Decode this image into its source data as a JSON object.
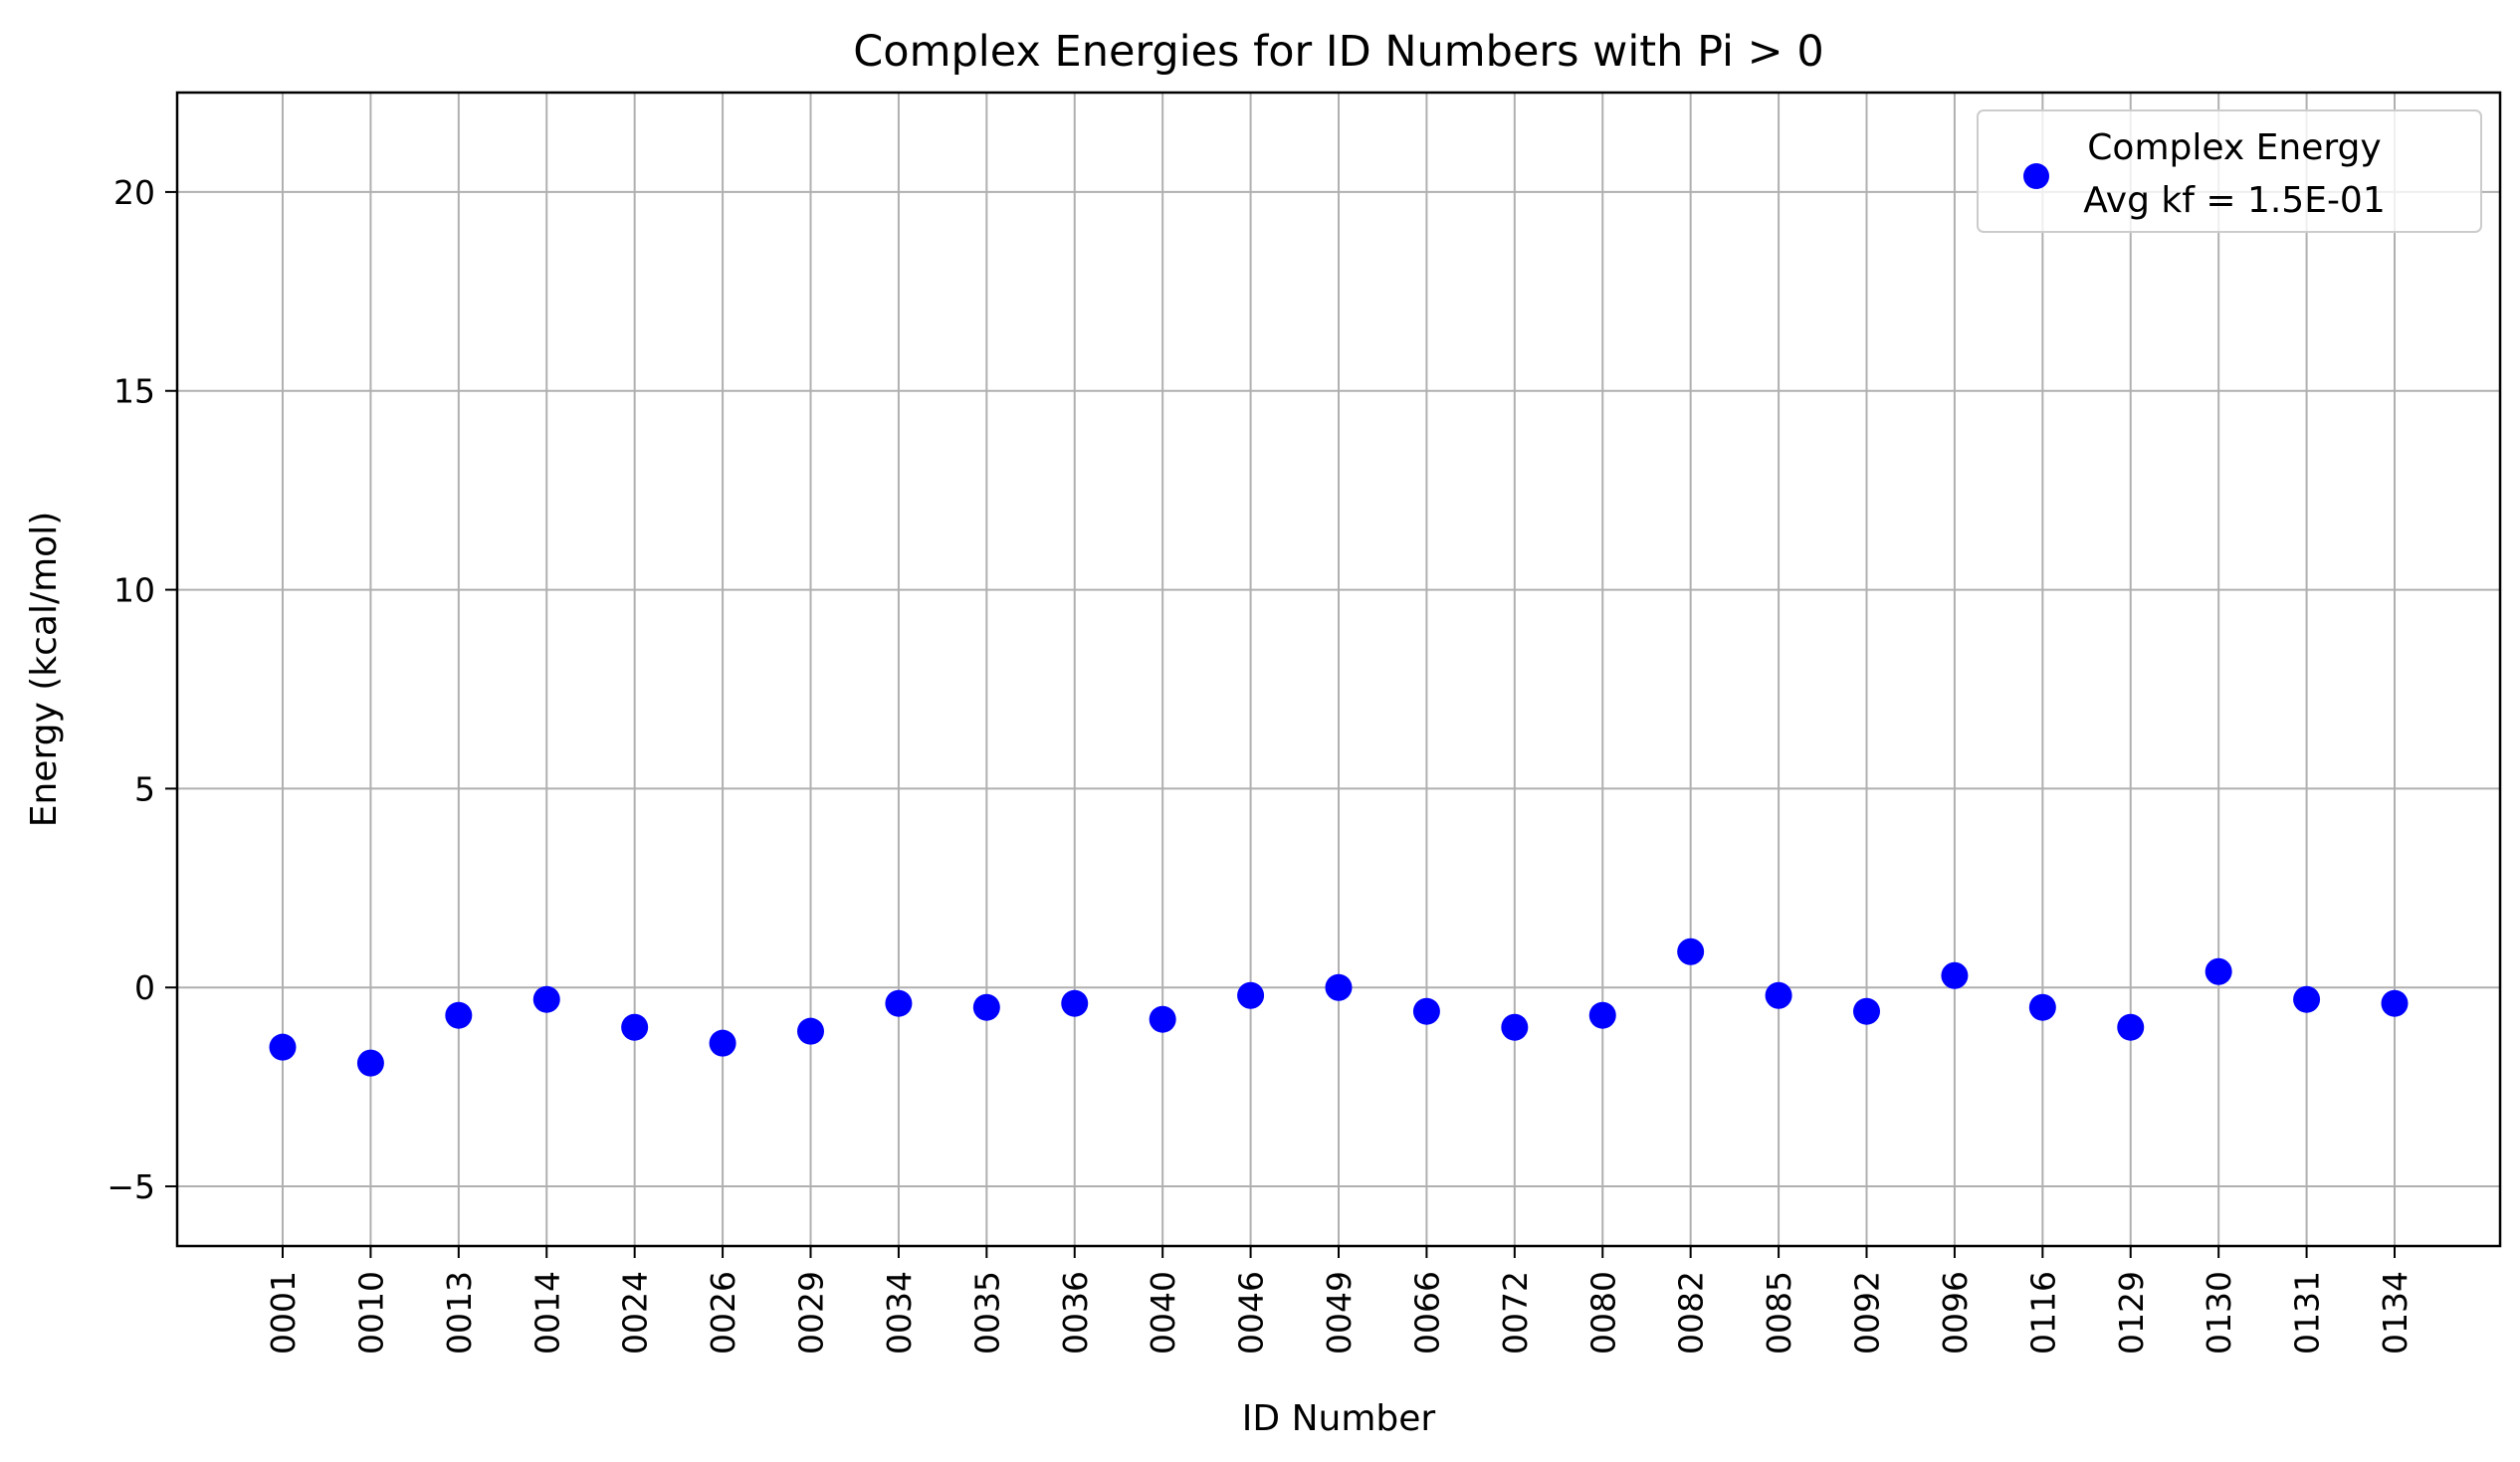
{
  "chart_data": {
    "type": "scatter",
    "title": "Complex Energies for ID Numbers with Pi > 0",
    "xlabel": "ID Number",
    "ylabel": "Energy (kcal/mol)",
    "ylim": [
      -6.5,
      22.5
    ],
    "yticks": [
      -5,
      0,
      5,
      10,
      15,
      20
    ],
    "ytick_labels": [
      "−5",
      "0",
      "5",
      "10",
      "15",
      "20"
    ],
    "grid": true,
    "legend_position": "top-right",
    "categories": [
      "0001",
      "0010",
      "0013",
      "0014",
      "0024",
      "0026",
      "0029",
      "0034",
      "0035",
      "0036",
      "0040",
      "0046",
      "0049",
      "0066",
      "0072",
      "0080",
      "0082",
      "0085",
      "0092",
      "0096",
      "0116",
      "0129",
      "0130",
      "0131",
      "0134"
    ],
    "series": [
      {
        "name": "Complex Energy",
        "color": "#0000ff",
        "values": [
          -1.5,
          -1.9,
          -0.7,
          -0.3,
          -1.0,
          -1.4,
          -1.1,
          -0.4,
          -0.5,
          -0.4,
          -0.8,
          -0.2,
          0.0,
          -0.6,
          -1.0,
          -0.7,
          0.9,
          -0.2,
          -0.6,
          0.3,
          -0.5,
          -1.0,
          0.4,
          -0.3,
          -0.4
        ]
      }
    ],
    "legend": {
      "line1": "Complex Energy",
      "line2": "Avg kf = 1.5E-01"
    }
  }
}
